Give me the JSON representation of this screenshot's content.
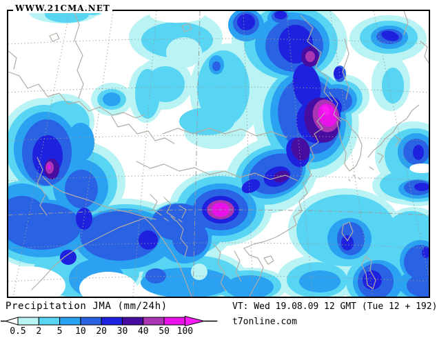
{
  "watermark": "WWW.21CMA.NET",
  "legend": {
    "title": "Precipitation JMA (mm/24h)",
    "tick_labels": [
      "0.5",
      "2",
      "5",
      "10",
      "20",
      "30",
      "40",
      "50",
      "100"
    ],
    "colors": [
      "#b9f3f4",
      "#58d5f3",
      "#2aa1f1",
      "#2a62e4",
      "#1e21dd",
      "#470da0",
      "#aa36b4",
      "#ea12ea"
    ],
    "underflow_color": "#ffffff",
    "overflow_color": "#fb1cf5"
  },
  "footer": {
    "valid_time": "VT: Wed 19.08.09 12 GMT (Tue 12 + 192)",
    "site": "t7online.com"
  },
  "map": {
    "frame_color": "#000000",
    "grid_color": "#9a9a9a",
    "coast_color": "#b3aca3",
    "no_precip_color": "#ffffff"
  }
}
